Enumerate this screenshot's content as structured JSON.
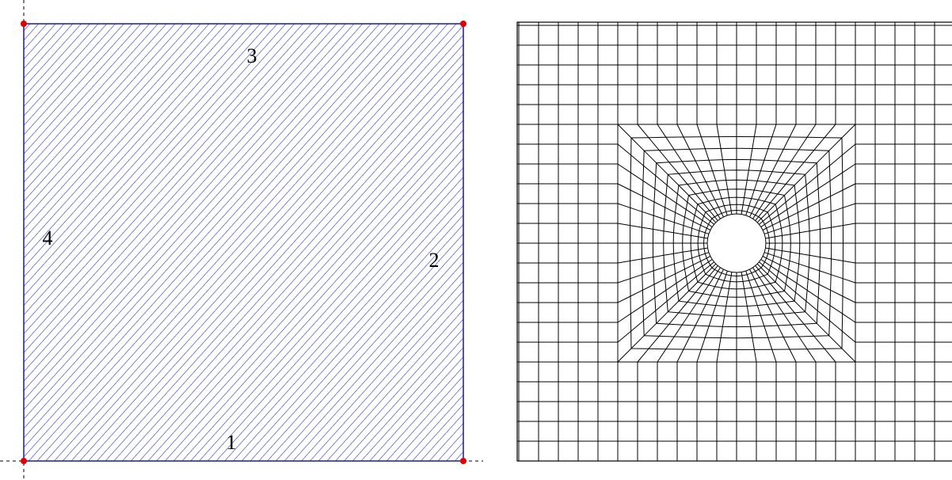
{
  "edges": [
    {
      "label": "1"
    },
    {
      "label": "2"
    },
    {
      "label": "3"
    },
    {
      "label": "4"
    }
  ]
}
